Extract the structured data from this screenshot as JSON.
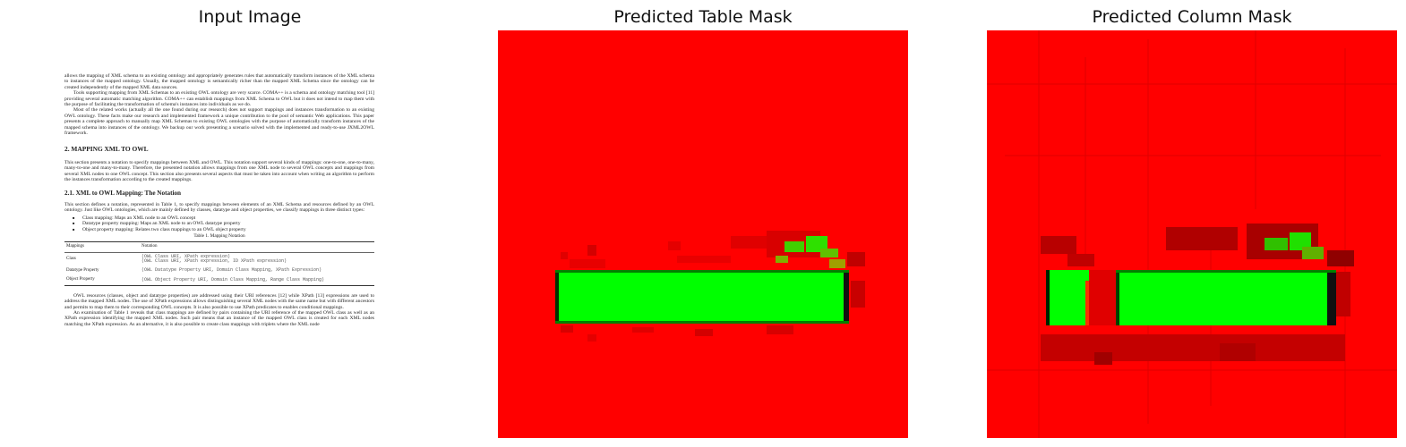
{
  "panels": {
    "input_title": "Input Image",
    "table_title": "Predicted Table Mask",
    "column_title": "Predicted Column Mask"
  },
  "colors": {
    "mask_background": "#ff0000",
    "mask_positive": "#00ff00",
    "mask_dark": "#b40000"
  },
  "document": {
    "para1": "allows the mapping of XML schema to an existing ontology and appropriately generates rules that automatically transform instances of the XML schema to instances of the mapped ontology. Usually, the mapped ontology is semantically richer than the mapped XML Schema since the ontology can be created independently of the mapped XML data sources.",
    "para2": "Tools supporting mapping from XML Schemas to an existing OWL ontology are very scarce. COMA++ is a schema and ontology matching tool [11] providing several automatic matching algorithm. COMA++ can establish mappings from XML Schema to OWL but it does not intend to map them with the purpose of facilitating the transformation of schema's instances into individuals as we do.",
    "para3": "Most of the related works (actually all the one found during our research) does not support mappings and instances transformation to an existing OWL ontology. These facts make our research and implemented framework a unique contribution to the pool of semantic Web applications. This paper presents a complete approach to manually map XML Schemas to existing OWL ontologies with the purpose of automatically transform instances of the mapped schema into instances of the ontology. We backup our work presenting a scenario solved with the implemented and ready-to-use JXML2OWL framework.",
    "heading2": "2.   MAPPING XML TO OWL",
    "para4": "This section presents a notation to specify mappings between XML and OWL. This notation support several kinds of mappings: one-to-one, one-to-many, many-to-one and many-to-many. Therefore, the presented notation allows mappings from one XML node to several OWL concepts and mappings from several XML nodes to one OWL concept. This section also presents several aspects that must be taken into account when writing an algorithm to perform the instances transformation according to the created mappings.",
    "heading3": "2.1. XML to OWL Mapping: The Notation",
    "para5": "This section defines a notation, represented in Table 1, to specify mappings between elements of an XML Schema and resources defined by an OWL ontology. Just like OWL ontologies, which are mainly defined by classes, datatype and object properties, we classify mappings in three distinct types:",
    "bullets": [
      "Class mapping: Maps an XML node to an OWL concept",
      "Datatype property mapping: Maps an XML node to an OWL datatype property",
      "Object property mapping: Relates two class mappings to an OWL object property"
    ],
    "table_caption": "Table 1.  Mapping Notation",
    "table_headers": [
      "Mappings",
      "Notation"
    ],
    "table_rows": [
      [
        "Class",
        "(OWL Class URI, XPath expression)\n(OWL Class URI, XPath expression, ID XPath expression)"
      ],
      [
        "Datatype Property",
        "(OWL Datatype Property URI, Domain Class Mapping, XPath Expression)"
      ],
      [
        "Object Property",
        "(OWL Object Property URI, Domain Class Mapping, Range Class Mapping)"
      ]
    ],
    "para6": "OWL resources (classes, object and datatype properties) are addressed using their URI references [12] while XPath [13] expressions are used to address the mapped XML nodes. The use of XPath expressions allows distinguishing several XML nodes with the same name but with different ancestors and permits to map them to their corresponding OWL concepts. It is also possible to use XPath predicates to enables conditional mappings.",
    "para7": "An examination of Table 1 reveals that class mappings are defined by pairs containing the URI reference of the mapped OWL class as well as an XPath expression identifying the mapped XML nodes. Such pair means that an instance of the mapped OWL class is created for each XML nodes matching the XPath expression. As an alternative, it is also possible to create class mappings with triplets where the XML node"
  }
}
